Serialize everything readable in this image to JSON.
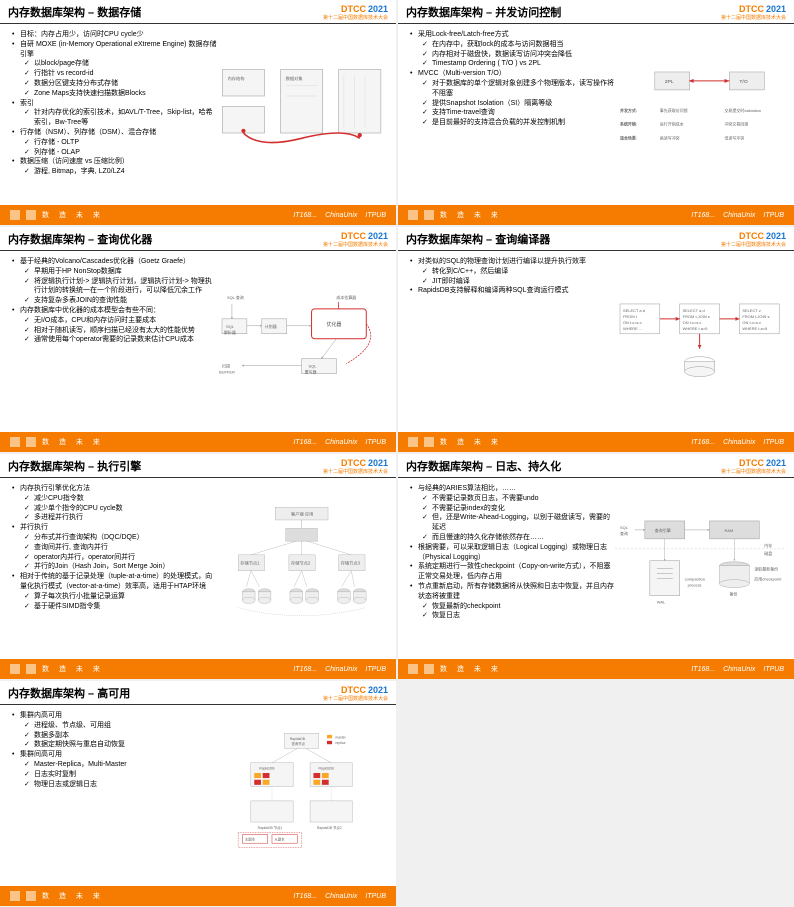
{
  "logo": {
    "main": "DTCC",
    "year": "2021",
    "sub": "第十二届中国数据库技术大会"
  },
  "footer": {
    "text": "数 造 未 来",
    "sponsors": [
      "IT168...",
      "ChinaUnix",
      "ITPUB"
    ]
  },
  "slides": [
    {
      "title": "内存数据库架构 – 数据存储",
      "bullets": [
        {
          "t": "目标：内存占用少，访问时CPU cycle少",
          "s": "bullet"
        },
        {
          "t": "自研 MOXE (in-Memory Operational eXtreme Engine) 数据存储引擎",
          "s": "bullet",
          "children": [
            {
              "t": "以block/page存储",
              "s": "check"
            },
            {
              "t": "行指针 vs record-id",
              "s": "check"
            },
            {
              "t": "数据分区键支持分布式存储",
              "s": "check"
            },
            {
              "t": "Zone Maps支持快速扫描数据Blocks",
              "s": "check"
            }
          ]
        },
        {
          "t": "索引",
          "s": "bullet",
          "children": [
            {
              "t": "针对内存优化的索引技术，如AVL/T-Tree，Skip-list，哈希索引，Bw-Tree等",
              "s": "check"
            }
          ]
        },
        {
          "t": "行存储（NSM）、列存储（DSM）、混合存储",
          "s": "bullet",
          "children": [
            {
              "t": "行存储 - OLTP",
              "s": "check"
            },
            {
              "t": "列存储 - OLAP",
              "s": "check"
            }
          ]
        },
        {
          "t": "数据压缩（访问速度 vs 压缩比例）",
          "s": "bullet",
          "children": [
            {
              "t": "游程, Bitmap，字典, LZ0/LZ4",
              "s": "check"
            }
          ]
        }
      ],
      "diagram": "storage"
    },
    {
      "title": "内存数据库架构 – 并发访问控制",
      "bullets": [
        {
          "t": "采用Lock-free/Latch-free方式",
          "s": "bullet",
          "children": [
            {
              "t": "在内存中，获取lock的成本与访问数据相当",
              "s": "check"
            },
            {
              "t": "内存相对于磁盘快，数据读写访问冲突会降低",
              "s": "check"
            },
            {
              "t": "Timestamp Ordering ( T/O ) vs 2PL",
              "s": "check"
            }
          ]
        },
        {
          "t": "MVCC（Multi-version T/O）",
          "s": "bullet",
          "children": [
            {
              "t": "对于数据库的单个逻辑对象创建多个物理版本，读写操作将不阻塞",
              "s": "check"
            },
            {
              "t": "提供Snapshot Isolation（SI）隔离等级",
              "s": "check"
            },
            {
              "t": "支持Time-travel查询",
              "s": "check"
            },
            {
              "t": "是目前最好的支持混合负载的并发控制机制",
              "s": "check"
            }
          ]
        }
      ],
      "diagram": "concurrency"
    },
    {
      "title": "内存数据库架构 – 查询优化器",
      "bullets": [
        {
          "t": "基于经典的Volcano/Cascades优化器（Goetz Graefe）",
          "s": "bullet",
          "children": [
            {
              "t": "早期用于HP NonStop数据库",
              "s": "check"
            },
            {
              "t": "将逻辑执行计划-> 逻辑执行计划，逻辑执行计划-> 物理执行计划的转换统一在一个阶段进行，可以降低冗余工作",
              "s": "check"
            },
            {
              "t": "支持复杂多表JOIN的查询性能",
              "s": "check"
            }
          ]
        },
        {
          "t": "内存数据库中优化器的成本模型会有些不同：",
          "s": "bullet",
          "children": [
            {
              "t": "无I/O成本，CPU和内存访问时主要成本",
              "s": "check"
            },
            {
              "t": "相对于随机读写，顺序扫描已经没有太大的性能优势",
              "s": "check"
            },
            {
              "t": "通常使用每个operator需要的记录数来估计CPU成本",
              "s": "check"
            }
          ]
        }
      ],
      "diagram": "optimizer"
    },
    {
      "title": "内存数据库架构 – 查询编译器",
      "bullets": [
        {
          "t": "对类似的SQL的物理查询计划进行编译以提升执行效率",
          "s": "bullet",
          "children": [
            {
              "t": "转化到C/C++，然后编译",
              "s": "check"
            },
            {
              "t": "JIT即时编译",
              "s": "check"
            }
          ]
        },
        {
          "t": "RapidsDB支持解释和编译两种SQL查询运行模式",
          "s": "bullet"
        }
      ],
      "diagram": "compiler"
    },
    {
      "title": "内存数据库架构 – 执行引擎",
      "bullets": [
        {
          "t": "内存执行引擎优化方法",
          "s": "bullet",
          "children": [
            {
              "t": "减少CPU指令数",
              "s": "check"
            },
            {
              "t": "减少单个指令的CPU cycle数",
              "s": "check"
            },
            {
              "t": "多进程并行执行",
              "s": "check"
            }
          ]
        },
        {
          "t": "并行执行",
          "s": "bullet",
          "children": [
            {
              "t": "分布式并行查询架构（DQC/DQE）",
              "s": "check"
            },
            {
              "t": "查询间并行, 查询内并行",
              "s": "check"
            },
            {
              "t": "operator内并行，operator间并行",
              "s": "check"
            },
            {
              "t": "并行的Join（Hash Join，Sort Merge Join）",
              "s": "check"
            }
          ]
        },
        {
          "t": "相对于传统的基于记录处理（tuple-at-a-time）的处理模式，向量化执行模式（vector-at-a-time）效率高，适用于HTAP环境",
          "s": "bullet",
          "children": [
            {
              "t": "算子每次执行小批量记录运算",
              "s": "check"
            },
            {
              "t": "基于硬件SIMD指令集",
              "s": "check"
            }
          ]
        }
      ],
      "diagram": "execution"
    },
    {
      "title": "内存数据库架构 – 日志、持久化",
      "bullets": [
        {
          "t": "与经典的ARIES算法相比，……",
          "s": "bullet",
          "children": [
            {
              "t": "不需要记录数页日志，不需要undo",
              "s": "check"
            },
            {
              "t": "不需要记录index的变化",
              "s": "check"
            },
            {
              "t": "但，还是Write-Ahead-Logging，以别于磁盘读写，需要的延迟",
              "s": "check"
            },
            {
              "t": "而且慢速的持久化存储依然存在……",
              "s": "check"
            }
          ]
        },
        {
          "t": "根据需要，可以采取逻辑日志（Logical Logging）或物理日志（Physical Logging）",
          "s": "bullet"
        },
        {
          "t": "系统定期进行一致性checkpoint（Copy-on-write方式），不阻塞正常交易处理，低内存占用",
          "s": "bullet"
        },
        {
          "t": "节点重新启动，所有存储数据将从快照和日志中恢复，并且内存状态将被重建",
          "s": "bullet",
          "children": [
            {
              "t": "恢复最新的checkpoint",
              "s": "check"
            },
            {
              "t": "恢复日志",
              "s": "check"
            }
          ]
        }
      ],
      "diagram": "logging"
    },
    {
      "title": "内存数据库架构 – 高可用",
      "bullets": [
        {
          "t": "集群内高可用",
          "s": "bullet",
          "children": [
            {
              "t": "进程级、节点级、可用组",
              "s": "check"
            },
            {
              "t": "数据多副本",
              "s": "check"
            },
            {
              "t": "数据定期快照与重启自动恢复",
              "s": "check"
            }
          ]
        },
        {
          "t": "集群间高可用",
          "s": "bullet",
          "children": [
            {
              "t": "Master-Replica，Multi-Master",
              "s": "check"
            },
            {
              "t": "日志实时复制",
              "s": "check"
            },
            {
              "t": "物理日志或逻辑日志",
              "s": "check"
            }
          ]
        }
      ],
      "diagram": "ha"
    }
  ],
  "concurrency_table": {
    "cols": [
      "2PL",
      "T/O"
    ],
    "rows": [
      {
        "label": "并发方式:",
        "c1": "事先获取访问锁",
        "c2": "交易提交时validation"
      },
      {
        "label": "系统开销:",
        "c1": "运行开销成本",
        "c2": "冲突交易回滚"
      },
      {
        "label": "适合场景:",
        "c1": "高读写冲突",
        "c2": "低读写冲突"
      }
    ]
  },
  "colors": {
    "orange": "#f57c00",
    "blue": "#1976d2",
    "red": "#d32f2f",
    "gray": "#999999"
  }
}
